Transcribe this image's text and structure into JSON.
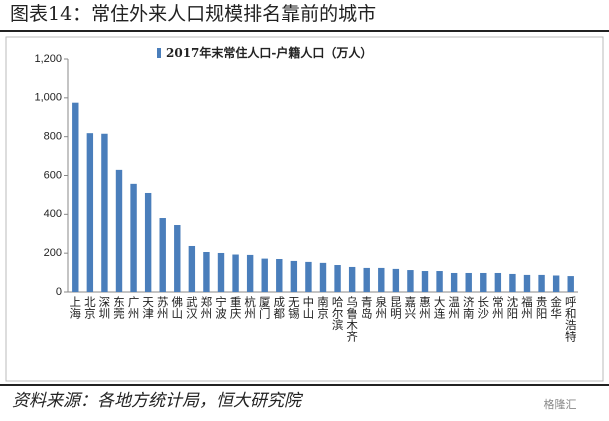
{
  "title": "图表14：常住外来人口规模排名靠前的城市",
  "source": "资料来源：各地方统计局，恒大研究院",
  "watermark": "格隆汇",
  "chart_data": {
    "type": "bar",
    "legend": "2017年末常住人口-户籍人口（万人）",
    "categories": [
      "上海",
      "北京",
      "深圳",
      "东莞",
      "广州",
      "天津",
      "苏州",
      "佛山",
      "武汉",
      "郑州",
      "宁波",
      "重庆",
      "杭州",
      "厦门",
      "成都",
      "无锡",
      "中山",
      "南京",
      "哈尔滨",
      "乌鲁木齐",
      "青岛",
      "泉州",
      "昆明",
      "嘉兴",
      "惠州",
      "大连",
      "温州",
      "济南",
      "长沙",
      "常州",
      "沈阳",
      "福州",
      "贵阳",
      "金华",
      "呼和浩特"
    ],
    "values": [
      975,
      818,
      815,
      629,
      557,
      510,
      381,
      345,
      237,
      206,
      201,
      193,
      191,
      172,
      170,
      160,
      155,
      150,
      139,
      129,
      124,
      124,
      119,
      113,
      108,
      108,
      98,
      98,
      98,
      98,
      93,
      88,
      88,
      85,
      82
    ],
    "color": "#4a7ebb",
    "ylim": [
      0,
      1200
    ],
    "yticks": [
      0,
      200,
      400,
      600,
      800,
      {
        "value": 1000,
        "label": "1,000"
      },
      {
        "value": 1200,
        "label": "1,200"
      }
    ]
  }
}
